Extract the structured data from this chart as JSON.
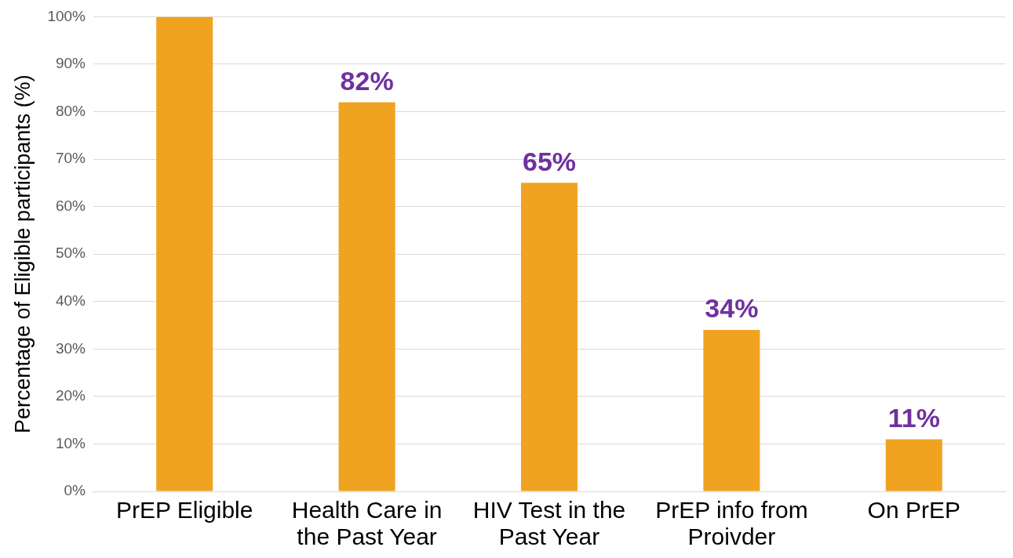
{
  "chart_data": {
    "type": "bar",
    "ylabel": "Percentage of Eligible participants (%)",
    "categories": [
      "PrEP Eligible",
      "Health Care in the Past Year",
      "HIV Test in the Past Year",
      "PrEP info from Proivder",
      "On PrEP"
    ],
    "values": [
      100,
      82,
      65,
      34,
      11
    ],
    "color": "#f0a321",
    "value_labels": [
      null,
      "82%",
      "65%",
      "34%",
      "11%"
    ],
    "ylim": [
      0,
      100
    ],
    "yticks": [
      {
        "value": 0,
        "label": "0%"
      },
      {
        "value": 10,
        "label": "10%"
      },
      {
        "value": 20,
        "label": "20%"
      },
      {
        "value": 30,
        "label": "30%"
      },
      {
        "value": 40,
        "label": "40%"
      },
      {
        "value": 50,
        "label": "50%"
      },
      {
        "value": 60,
        "label": "60%"
      },
      {
        "value": 70,
        "label": "70%"
      },
      {
        "value": 80,
        "label": "80%"
      },
      {
        "value": 90,
        "label": "90%"
      },
      {
        "value": 100,
        "label": "100%"
      }
    ],
    "grid": "y",
    "legend": false
  }
}
